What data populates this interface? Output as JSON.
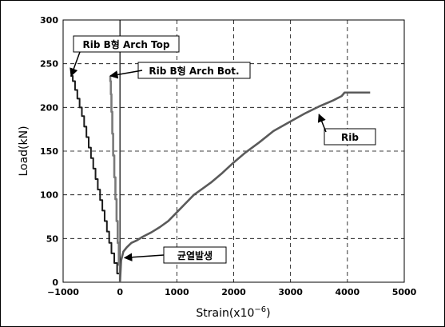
{
  "chart_data": {
    "type": "line",
    "title": "",
    "xlabel_base": "Strain(x10",
    "xlabel_sup": "−6",
    "xlabel_tail": ")",
    "ylabel": "Load(kN)",
    "xlim": [
      -1000,
      5000
    ],
    "ylim": [
      0,
      300
    ],
    "xticks": [
      -1000,
      0,
      1000,
      2000,
      3000,
      4000,
      5000
    ],
    "xtick_labels": [
      "−1000",
      "0",
      "1000",
      "2000",
      "3000",
      "4000",
      "5000"
    ],
    "yticks": [
      0,
      50,
      100,
      150,
      200,
      250,
      300
    ],
    "ytick_labels": [
      "0",
      "50",
      "100",
      "150",
      "200",
      "250",
      "300"
    ],
    "grid": true,
    "series": [
      {
        "name": "Rib B형 Arch Top",
        "color": "#1a1a1a",
        "x": [
          0,
          -50,
          -100,
          -150,
          -190,
          -230,
          -270,
          -310,
          -350,
          -390,
          -430,
          -470,
          -510,
          -550,
          -590,
          -630,
          -670,
          -710,
          -750,
          -790,
          -830,
          -870
        ],
        "y": [
          0,
          10,
          22,
          33,
          45,
          58,
          70,
          82,
          94,
          106,
          118,
          130,
          142,
          154,
          166,
          178,
          190,
          200,
          210,
          220,
          230,
          236
        ]
      },
      {
        "name": "Rib B형 Arch Bot.",
        "color": "#7a7a7a",
        "x": [
          0,
          -20,
          -40,
          -60,
          -80,
          -100,
          -120,
          -135,
          -150,
          -160,
          -170,
          -175
        ],
        "y": [
          0,
          20,
          45,
          70,
          95,
          120,
          145,
          170,
          195,
          215,
          230,
          236
        ]
      },
      {
        "name": "Rib",
        "color": "#5a5a5a",
        "x": [
          0,
          20,
          60,
          120,
          200,
          300,
          400,
          550,
          700,
          850,
          1000,
          1150,
          1300,
          1450,
          1600,
          1800,
          2000,
          2200,
          2450,
          2700,
          3000,
          3250,
          3500,
          3750,
          3900,
          3950,
          4000,
          4150,
          4400
        ],
        "y": [
          0,
          25,
          35,
          40,
          45,
          48,
          52,
          57,
          63,
          70,
          80,
          90,
          100,
          107,
          114,
          125,
          137,
          148,
          160,
          173,
          184,
          193,
          201,
          208,
          213,
          217,
          217,
          217,
          217
        ]
      }
    ],
    "annotations": [
      {
        "text": "Rib B형 Arch Top",
        "arrow_to": [
          -860,
          236
        ]
      },
      {
        "text": "Rib B형 Arch Bot.",
        "arrow_to": [
          -170,
          236
        ]
      },
      {
        "text": "Rib",
        "arrow_to": [
          3500,
          192
        ]
      },
      {
        "text": "균열발생",
        "arrow_to": [
          80,
          28
        ]
      }
    ]
  }
}
